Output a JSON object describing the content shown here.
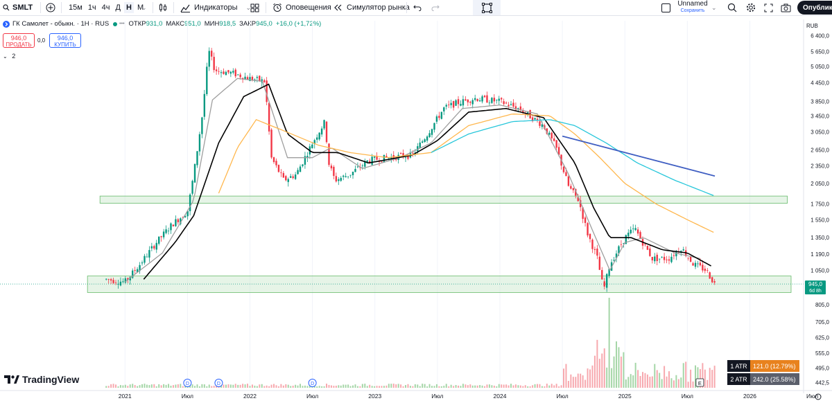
{
  "toolbar": {
    "symbol": "SMLT",
    "intervals": [
      "15м",
      "1ч",
      "4ч",
      "Д",
      "Н",
      "М"
    ],
    "active_interval": "Н",
    "indicators_label": "Индикаторы",
    "alerts_label": "Оповещения",
    "replay_label": "Симулятор рынка",
    "layout_name": "Unnamed",
    "save_label": "Сохранить",
    "publish_label": "Опубликовать"
  },
  "legend": {
    "title": "ГК Самолет - обыкн. · 1Н · RUS",
    "open_label": "ОТКР",
    "open": "931,0",
    "high_label": "МАКС",
    "high": "951,0",
    "low_label": "МИН",
    "low": "918,5",
    "close_label": "ЗАКР",
    "close": "945,0",
    "change": "+16,0 (+1,72%)",
    "sell_price": "946,0",
    "sell_label": "ПРОДАТЬ",
    "spread": "0,0",
    "buy_price": "946,0",
    "buy_label": "КУПИТЬ",
    "indicator_count": "2"
  },
  "atr": [
    {
      "label": "1 ATR",
      "value": "121.0 (12.79%)",
      "color": "#e8821e"
    },
    {
      "label": "2 ATR",
      "value": "242.0 (25.58%)",
      "color": "#5b5f6b"
    }
  ],
  "brand": "TradingView",
  "colors": {
    "up": "#089981",
    "down": "#f23645",
    "ma_fast": "#9e9e9e",
    "ma_mid": "#000000",
    "ma_slow": "#ffb74d",
    "ma_long": "#26c6da",
    "trend": "#3f5ec2",
    "zone": "#c8e6c9"
  },
  "chart_data": {
    "type": "candlestick",
    "currency": "RUB",
    "y_scale": "log",
    "ylim": [
      425,
      6800
    ],
    "y_ticks": [
      "6 400,0",
      "5 650,0",
      "5 050,0",
      "4 450,0",
      "3 850,0",
      "3 450,0",
      "3 050,0",
      "2 650,0",
      "2 350,0",
      "2 050,0",
      "1 750,0",
      "1 550,0",
      "1 350,0",
      "1 190,0",
      "1 050,0",
      "945,0",
      "805,0",
      "705,0",
      "625,0",
      "555,0",
      "495,0",
      "442,5"
    ],
    "x_ticks": [
      "2021",
      "Июл",
      "2022",
      "Июл",
      "2023",
      "Июл",
      "2024",
      "Июл",
      "2025",
      "Июл",
      "2026",
      "Июл"
    ],
    "last_price": "945,0",
    "last_countdown": "6d 8h",
    "price_path": [
      [
        2020.85,
        980
      ],
      [
        2021.0,
        960
      ],
      [
        2021.12,
        1100
      ],
      [
        2021.25,
        1300
      ],
      [
        2021.38,
        1500
      ],
      [
        2021.5,
        1650
      ],
      [
        2021.55,
        2200
      ],
      [
        2021.62,
        3500
      ],
      [
        2021.67,
        5700
      ],
      [
        2021.72,
        4900
      ],
      [
        2021.85,
        4800
      ],
      [
        2022.0,
        4600
      ],
      [
        2022.12,
        4500
      ],
      [
        2022.17,
        2500
      ],
      [
        2022.27,
        2100
      ],
      [
        2022.37,
        2200
      ],
      [
        2022.5,
        2800
      ],
      [
        2022.6,
        3300
      ],
      [
        2022.63,
        2400
      ],
      [
        2022.68,
        2100
      ],
      [
        2022.8,
        2200
      ],
      [
        2022.95,
        2450
      ],
      [
        2023.1,
        2500
      ],
      [
        2023.3,
        2550
      ],
      [
        2023.42,
        3000
      ],
      [
        2023.55,
        3650
      ],
      [
        2023.65,
        3800
      ],
      [
        2023.8,
        3950
      ],
      [
        2024.0,
        3850
      ],
      [
        2024.15,
        3650
      ],
      [
        2024.35,
        3200
      ],
      [
        2024.45,
        2700
      ],
      [
        2024.55,
        2000
      ],
      [
        2024.63,
        1800
      ],
      [
        2024.7,
        1400
      ],
      [
        2024.78,
        1150
      ],
      [
        2024.83,
        900
      ],
      [
        2024.88,
        1100
      ],
      [
        2025.0,
        1350
      ],
      [
        2025.08,
        1450
      ],
      [
        2025.12,
        1350
      ],
      [
        2025.22,
        1150
      ],
      [
        2025.35,
        1150
      ],
      [
        2025.45,
        1250
      ],
      [
        2025.55,
        1100
      ],
      [
        2025.65,
        1050
      ],
      [
        2025.72,
        945
      ]
    ],
    "moving_averages": [
      {
        "color": "#9e9e9e",
        "points": [
          [
            2021.0,
            960
          ],
          [
            2021.3,
            1200
          ],
          [
            2021.55,
            1800
          ],
          [
            2021.7,
            3900
          ],
          [
            2021.9,
            4600
          ],
          [
            2022.1,
            4500
          ],
          [
            2022.3,
            2500
          ],
          [
            2022.5,
            2500
          ],
          [
            2022.65,
            2700
          ],
          [
            2022.9,
            2300
          ],
          [
            2023.2,
            2500
          ],
          [
            2023.45,
            2800
          ],
          [
            2023.7,
            3650
          ],
          [
            2024.0,
            3750
          ],
          [
            2024.3,
            3500
          ],
          [
            2024.55,
            2200
          ],
          [
            2024.75,
            1400
          ],
          [
            2024.88,
            1050
          ],
          [
            2025.0,
            1300
          ],
          [
            2025.15,
            1350
          ],
          [
            2025.4,
            1200
          ],
          [
            2025.6,
            1150
          ]
        ]
      },
      {
        "color": "#000000",
        "points": [
          [
            2021.15,
            980
          ],
          [
            2021.4,
            1300
          ],
          [
            2021.55,
            1600
          ],
          [
            2021.75,
            2800
          ],
          [
            2021.95,
            4000
          ],
          [
            2022.15,
            4400
          ],
          [
            2022.3,
            3000
          ],
          [
            2022.5,
            2600
          ],
          [
            2022.7,
            2600
          ],
          [
            2022.95,
            2400
          ],
          [
            2023.3,
            2550
          ],
          [
            2023.5,
            2850
          ],
          [
            2023.75,
            3550
          ],
          [
            2024.05,
            3650
          ],
          [
            2024.35,
            3400
          ],
          [
            2024.6,
            2400
          ],
          [
            2024.75,
            1700
          ],
          [
            2024.88,
            1350
          ],
          [
            2025.05,
            1350
          ],
          [
            2025.3,
            1230
          ],
          [
            2025.5,
            1200
          ],
          [
            2025.7,
            1080
          ]
        ]
      },
      {
        "color": "#ffb74d",
        "points": [
          [
            2021.75,
            1900
          ],
          [
            2021.9,
            2700
          ],
          [
            2022.05,
            3350
          ],
          [
            2022.25,
            3100
          ],
          [
            2022.55,
            2750
          ],
          [
            2022.8,
            2600
          ],
          [
            2023.1,
            2500
          ],
          [
            2023.45,
            2600
          ],
          [
            2023.75,
            3200
          ],
          [
            2024.1,
            3500
          ],
          [
            2024.4,
            3450
          ],
          [
            2024.6,
            3000
          ],
          [
            2024.8,
            2500
          ],
          [
            2025.0,
            2050
          ],
          [
            2025.25,
            1750
          ],
          [
            2025.5,
            1550
          ],
          [
            2025.72,
            1400
          ]
        ]
      },
      {
        "color": "#26c6da",
        "points": [
          [
            2023.45,
            2600
          ],
          [
            2023.75,
            3000
          ],
          [
            2024.1,
            3300
          ],
          [
            2024.4,
            3350
          ],
          [
            2024.6,
            3200
          ],
          [
            2024.85,
            2800
          ],
          [
            2025.1,
            2400
          ],
          [
            2025.4,
            2100
          ],
          [
            2025.72,
            1860
          ]
        ]
      }
    ],
    "trend_line": [
      [
        2024.5,
        2950
      ],
      [
        2025.72,
        2170
      ]
    ],
    "support_zones": [
      [
        1760,
        1860
      ],
      [
        885,
        1005
      ]
    ],
    "dividend_markers": [
      2021.5,
      2021.75,
      2022.5
    ],
    "earnings_marker": 2025.6
  }
}
